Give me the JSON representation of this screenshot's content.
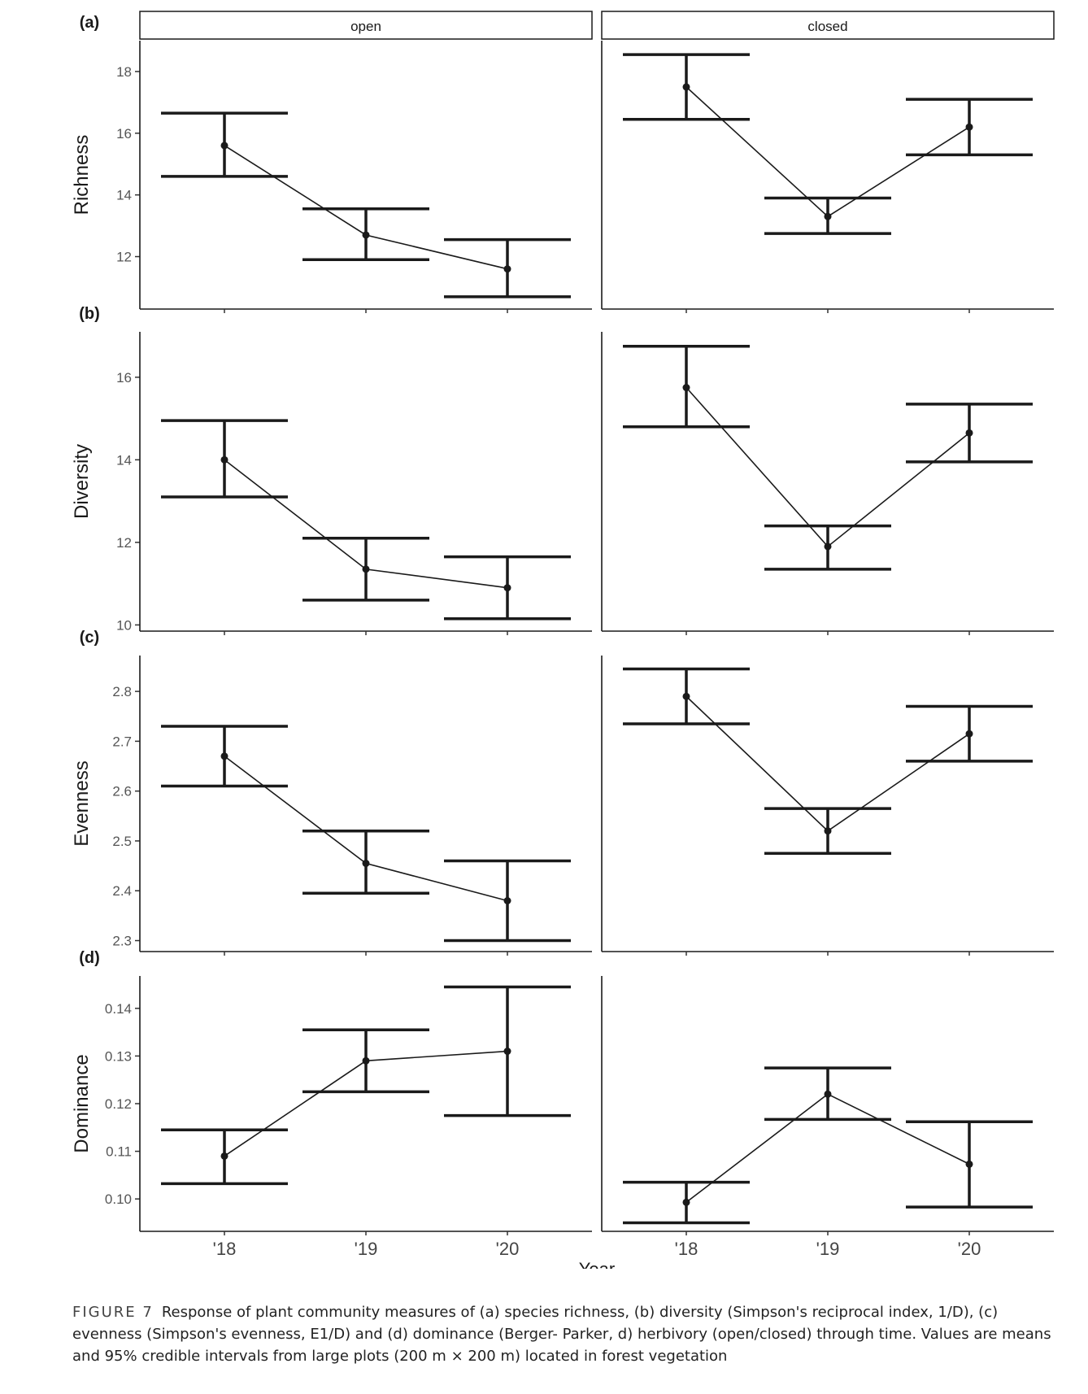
{
  "facets": [
    "open",
    "closed"
  ],
  "x_categories": [
    "'18",
    "'19",
    "'20"
  ],
  "xlabel": "Year",
  "chart_data": [
    {
      "type": "line",
      "panel_label": "(a)",
      "ylabel": "Richness",
      "ylim": [
        10.3,
        19.0
      ],
      "yticks": [
        12,
        14,
        16,
        18
      ],
      "ytick_labels": [
        "12",
        "14",
        "16",
        "18"
      ],
      "series": [
        {
          "name": "open",
          "mean": [
            15.6,
            12.7,
            11.6
          ],
          "lower": [
            14.6,
            11.9,
            10.7
          ],
          "upper": [
            16.65,
            13.55,
            12.55
          ]
        },
        {
          "name": "closed",
          "mean": [
            17.5,
            13.3,
            16.2
          ],
          "lower": [
            16.45,
            12.75,
            15.3
          ],
          "upper": [
            18.55,
            13.9,
            17.1
          ]
        }
      ]
    },
    {
      "type": "line",
      "panel_label": "(b)",
      "ylabel": "Diversity",
      "ylim": [
        9.85,
        17.1
      ],
      "yticks": [
        10,
        12,
        14,
        16
      ],
      "ytick_labels": [
        "10",
        "12",
        "14",
        "16"
      ],
      "series": [
        {
          "name": "open",
          "mean": [
            14.0,
            11.35,
            10.9
          ],
          "lower": [
            13.1,
            10.6,
            10.15
          ],
          "upper": [
            14.95,
            12.1,
            11.65
          ]
        },
        {
          "name": "closed",
          "mean": [
            15.75,
            11.9,
            14.65
          ],
          "lower": [
            14.8,
            11.35,
            13.95
          ],
          "upper": [
            16.75,
            12.4,
            15.35
          ]
        }
      ]
    },
    {
      "type": "line",
      "panel_label": "(c)",
      "ylabel": "Evenness",
      "ylim": [
        2.278,
        2.872
      ],
      "yticks": [
        2.3,
        2.4,
        2.5,
        2.6,
        2.7,
        2.8
      ],
      "ytick_labels": [
        "2.3",
        "2.4",
        "2.5",
        "2.6",
        "2.7",
        "2.8"
      ],
      "series": [
        {
          "name": "open",
          "mean": [
            2.67,
            2.455,
            2.38
          ],
          "lower": [
            2.61,
            2.395,
            2.3
          ],
          "upper": [
            2.73,
            2.52,
            2.46
          ]
        },
        {
          "name": "closed",
          "mean": [
            2.79,
            2.52,
            2.715
          ],
          "lower": [
            2.735,
            2.475,
            2.66
          ],
          "upper": [
            2.845,
            2.565,
            2.77
          ]
        }
      ]
    },
    {
      "type": "line",
      "panel_label": "(d)",
      "ylabel": "Dominance",
      "ylim": [
        0.0932,
        0.1468
      ],
      "yticks": [
        0.1,
        0.11,
        0.12,
        0.13,
        0.14
      ],
      "ytick_labels": [
        "0.10",
        "0.11",
        "0.12",
        "0.13",
        "0.14"
      ],
      "series": [
        {
          "name": "open",
          "mean": [
            0.109,
            0.129,
            0.131
          ],
          "lower": [
            0.1032,
            0.1225,
            0.1175
          ],
          "upper": [
            0.1145,
            0.1355,
            0.1445
          ]
        },
        {
          "name": "closed",
          "mean": [
            0.0993,
            0.122,
            0.1073
          ],
          "lower": [
            0.095,
            0.1167,
            0.0983
          ],
          "upper": [
            0.1035,
            0.1275,
            0.1162
          ]
        }
      ]
    }
  ],
  "caption": {
    "label": "FIGURE 7",
    "text": "Response of plant community measures of (a) species richness, (b) diversity (Simpson's reciprocal index, 1/D), (c) evenness (Simpson's evenness, E1/D) and (d) dominance (Berger- Parker, d) herbivory (open/closed) through time. Values are means and 95% credible intervals from large plots (200 m × 200 m) located in forest vegetation"
  }
}
